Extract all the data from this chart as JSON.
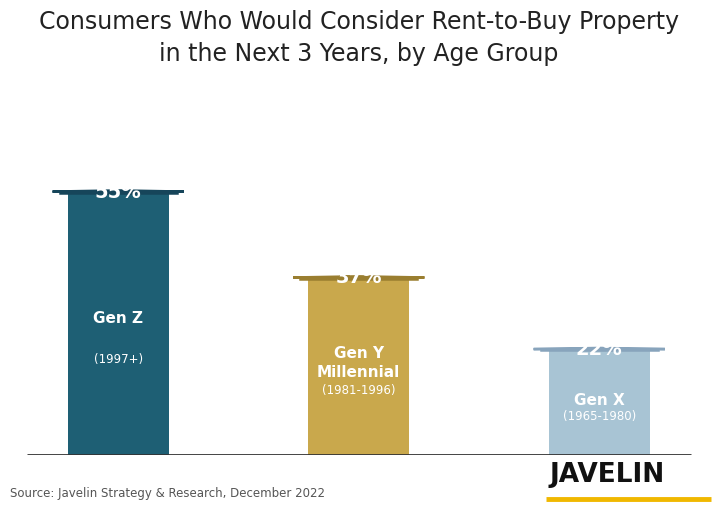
{
  "title": "Consumers Who Would Consider Rent-to-Buy Property\nin the Next 3 Years, by Age Group",
  "title_fontsize": 17,
  "categories": [
    "Gen Z",
    "Gen Y\nMillennial",
    "Gen X"
  ],
  "subtitles": [
    "(1997+)",
    "(1981-1996)",
    "(1965-1980)"
  ],
  "values": [
    55,
    37,
    22
  ],
  "bar_colors": [
    "#1e5f74",
    "#c9a84c",
    "#a8c4d4"
  ],
  "house_outline_colors": [
    "#16455a",
    "#9a7e30",
    "#88a4bc"
  ],
  "percent_labels": [
    "55%",
    "37%",
    "22%"
  ],
  "source_text": "Source: Javelin Strategy & Research, December 2022",
  "javelin_text": "JAVELIN",
  "javelin_underline_color": "#f0b800",
  "background_color": "#ffffff",
  "bar_width": 0.42,
  "x_positions": [
    0,
    1,
    2
  ],
  "xlim": [
    -0.45,
    2.45
  ],
  "ylim": [
    0,
    100
  ],
  "bar_area_max": 70,
  "note_scale": 0.55
}
